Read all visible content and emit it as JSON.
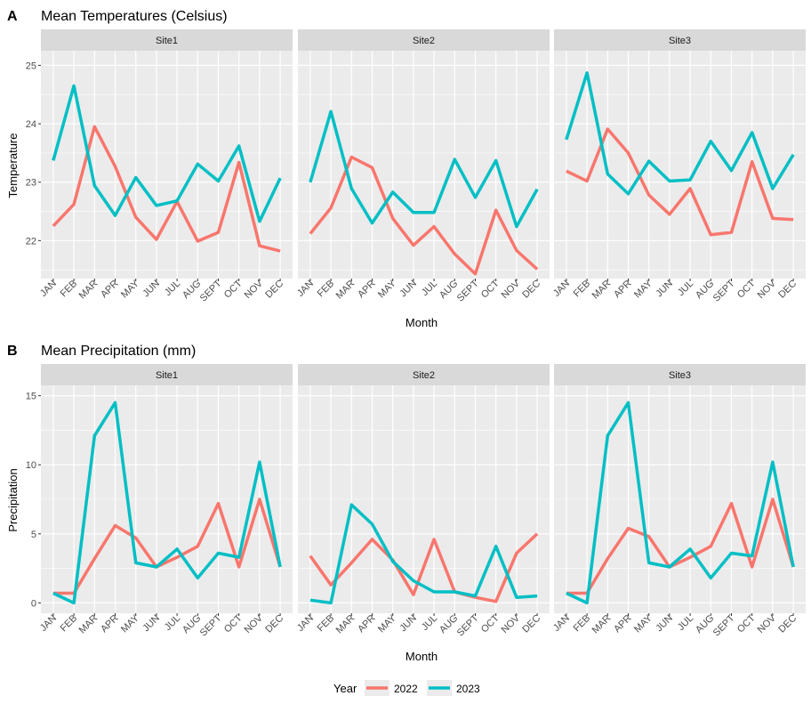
{
  "chart_data": [
    {
      "type": "line",
      "tag": "A",
      "title": "Mean Temperatures (Celsius)",
      "xlabel": "Month",
      "ylabel": "Temperature",
      "ylim": [
        21.35,
        25.25
      ],
      "yticks": [
        22,
        23,
        24,
        25
      ],
      "categories": [
        "JAN",
        "FEB",
        "MAR",
        "APR",
        "MAY",
        "JUN",
        "JUL",
        "AUG",
        "SEPT",
        "OCT",
        "NOV",
        "DEC"
      ],
      "facets": [
        {
          "name": "Site1",
          "series": [
            {
              "name": "2022",
              "values": [
                22.25,
                22.62,
                23.95,
                23.27,
                22.4,
                22.02,
                22.67,
                21.99,
                22.14,
                23.34,
                21.91,
                21.82
              ]
            },
            {
              "name": "2023",
              "values": [
                23.37,
                24.65,
                22.94,
                22.43,
                23.08,
                22.6,
                22.68,
                23.31,
                23.02,
                23.62,
                22.33,
                23.07
              ]
            }
          ]
        },
        {
          "name": "Site2",
          "series": [
            {
              "name": "2022",
              "values": [
                22.12,
                22.56,
                23.43,
                23.25,
                22.38,
                21.92,
                22.24,
                21.77,
                21.43,
                22.52,
                21.83,
                21.51
              ]
            },
            {
              "name": "2023",
              "values": [
                23.0,
                24.21,
                22.89,
                22.3,
                22.83,
                22.48,
                22.48,
                23.39,
                22.74,
                23.37,
                22.24,
                22.88
              ]
            }
          ]
        },
        {
          "name": "Site3",
          "series": [
            {
              "name": "2022",
              "values": [
                23.19,
                23.02,
                23.91,
                23.5,
                22.78,
                22.45,
                22.89,
                22.1,
                22.14,
                23.35,
                22.38,
                22.36
              ]
            },
            {
              "name": "2023",
              "values": [
                23.73,
                24.87,
                23.14,
                22.8,
                23.36,
                23.02,
                23.04,
                23.7,
                23.2,
                23.85,
                22.89,
                23.47
              ]
            }
          ]
        }
      ]
    },
    {
      "type": "line",
      "tag": "B",
      "title": "Mean Precipitation (mm)",
      "xlabel": "Month",
      "ylabel": "Precipitation",
      "ylim": [
        -0.75,
        15.75
      ],
      "yticks": [
        0,
        5,
        10,
        15
      ],
      "categories": [
        "JAN",
        "FEB",
        "MAR",
        "APR",
        "MAY",
        "JUN",
        "JUL",
        "AUG",
        "SEPT",
        "OCT",
        "NOV",
        "DEC"
      ],
      "facets": [
        {
          "name": "Site1",
          "series": [
            {
              "name": "2022",
              "values": [
                0.7,
                0.7,
                3.2,
                5.6,
                4.7,
                2.6,
                3.3,
                4.1,
                7.2,
                2.6,
                7.5,
                2.6
              ]
            },
            {
              "name": "2023",
              "values": [
                0.7,
                0.0,
                12.1,
                14.5,
                2.9,
                2.6,
                3.9,
                1.8,
                3.6,
                3.3,
                10.2,
                2.6
              ]
            }
          ]
        },
        {
          "name": "Site2",
          "series": [
            {
              "name": "2022",
              "values": [
                3.4,
                1.3,
                2.9,
                4.6,
                3.1,
                0.6,
                4.6,
                0.8,
                0.4,
                0.1,
                3.6,
                5.0
              ]
            },
            {
              "name": "2023",
              "values": [
                0.2,
                0.0,
                7.1,
                5.7,
                3.0,
                1.6,
                0.8,
                0.8,
                0.5,
                4.1,
                0.4,
                0.5
              ]
            }
          ]
        },
        {
          "name": "Site3",
          "series": [
            {
              "name": "2022",
              "values": [
                0.7,
                0.7,
                3.2,
                5.4,
                4.8,
                2.6,
                3.3,
                4.1,
                7.2,
                2.6,
                7.5,
                2.6
              ]
            },
            {
              "name": "2023",
              "values": [
                0.7,
                0.0,
                12.1,
                14.5,
                2.9,
                2.6,
                3.9,
                1.8,
                3.6,
                3.4,
                10.2,
                2.6
              ]
            }
          ]
        }
      ]
    }
  ],
  "legend": {
    "title": "Year",
    "placement": "bottom",
    "entries": [
      {
        "name": "2022",
        "color": "#F8766D"
      },
      {
        "name": "2023",
        "color": "#00BFC4"
      }
    ]
  },
  "style": {
    "panel_bg": "#EBEBEB",
    "strip_bg": "#D9D9D9",
    "grid_color": "#FFFFFF",
    "series_colors": {
      "2022": "#F8766D",
      "2023": "#00BFC4"
    }
  }
}
